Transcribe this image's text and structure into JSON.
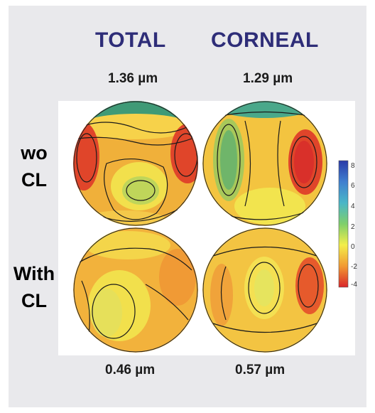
{
  "columns": {
    "total": "TOTAL",
    "corneal": "CORNEAL"
  },
  "rms": {
    "total_wo": "1.36 µm",
    "corneal_wo": "1.29 µm",
    "total_with": "0.46 µm",
    "corneal_with": "0.57 µm"
  },
  "rows": {
    "wo_line1": "wo",
    "wo_line2": "CL",
    "with_line1": "With",
    "with_line2": "CL"
  },
  "colorbar": {
    "ticks": [
      "8",
      "6",
      "4",
      "2",
      "0",
      "-2",
      "-4"
    ],
    "colors": [
      "#2a3aa8",
      "#3f7fcf",
      "#49b6c8",
      "#7fcf6a",
      "#f3ee4a",
      "#f29a33",
      "#d9262a"
    ]
  }
}
